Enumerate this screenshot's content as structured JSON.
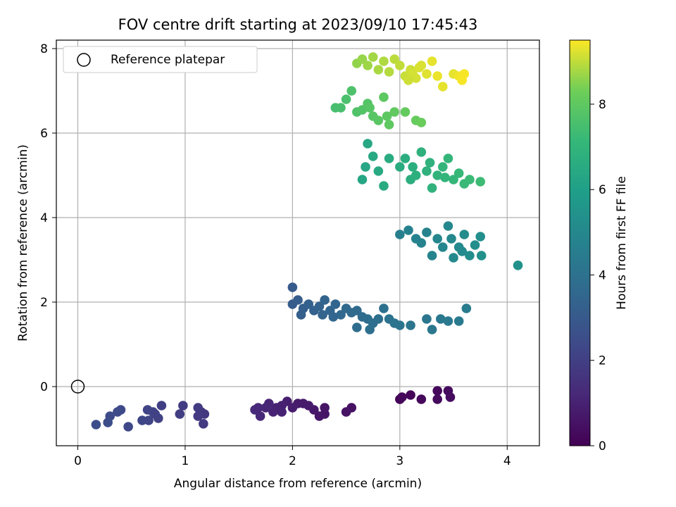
{
  "chart_data": {
    "type": "scatter",
    "title": "FOV centre drift starting at 2023/09/10 17:45:43",
    "xlabel": "Angular distance from reference (arcmin)",
    "ylabel": "Rotation from reference (arcmin)",
    "xlim": [
      -0.2,
      4.3
    ],
    "ylim": [
      -1.4,
      8.2
    ],
    "xticks": [
      0,
      1,
      2,
      3,
      4
    ],
    "yticks": [
      0,
      2,
      4,
      6,
      8
    ],
    "grid": true,
    "legend": {
      "position": "top-left",
      "entries": [
        "Reference platepar"
      ]
    },
    "reference_point": {
      "x": 0,
      "y": 0
    },
    "colorbar": {
      "label": "Hours from first FF file",
      "colormap": "viridis",
      "range": [
        0,
        9.5
      ],
      "ticks": [
        0,
        2,
        4,
        6,
        8
      ]
    },
    "points": [
      [
        3.0,
        -0.3,
        0.1
      ],
      [
        3.1,
        -0.2,
        0.15
      ],
      [
        3.2,
        -0.3,
        0.2
      ],
      [
        3.35,
        -0.1,
        0.25
      ],
      [
        3.45,
        -0.1,
        0.3
      ],
      [
        3.47,
        -0.25,
        0.35
      ],
      [
        3.35,
        -0.3,
        0.3
      ],
      [
        3.02,
        -0.25,
        0.2
      ],
      [
        2.55,
        -0.5,
        0.5
      ],
      [
        2.5,
        -0.6,
        0.55
      ],
      [
        2.3,
        -0.65,
        0.6
      ],
      [
        2.25,
        -0.7,
        0.65
      ],
      [
        2.2,
        -0.55,
        0.7
      ],
      [
        2.1,
        -0.4,
        0.75
      ],
      [
        2.05,
        -0.4,
        0.8
      ],
      [
        2.0,
        -0.5,
        0.85
      ],
      [
        1.95,
        -0.35,
        0.9
      ],
      [
        1.9,
        -0.45,
        0.95
      ],
      [
        1.85,
        -0.5,
        1.0
      ],
      [
        1.82,
        -0.6,
        1.05
      ],
      [
        1.78,
        -0.4,
        1.1
      ],
      [
        1.75,
        -0.5,
        1.15
      ],
      [
        1.7,
        -0.7,
        1.2
      ],
      [
        1.65,
        -0.55,
        1.25
      ],
      [
        2.15,
        -0.45,
        0.8
      ],
      [
        1.9,
        -0.6,
        1.0
      ],
      [
        2.3,
        -0.5,
        0.6
      ],
      [
        1.68,
        -0.5,
        1.2
      ],
      [
        1.18,
        -0.65,
        1.7
      ],
      [
        1.15,
        -0.6,
        1.75
      ],
      [
        1.17,
        -0.88,
        1.8
      ],
      [
        1.12,
        -0.5,
        1.85
      ],
      [
        0.98,
        -0.45,
        1.9
      ],
      [
        0.95,
        -0.65,
        1.95
      ],
      [
        0.78,
        -0.45,
        2.0
      ],
      [
        0.75,
        -0.75,
        2.05
      ],
      [
        0.7,
        -0.6,
        2.1
      ],
      [
        0.65,
        -0.55,
        2.15
      ],
      [
        0.66,
        -0.8,
        2.2
      ],
      [
        0.6,
        -0.8,
        2.25
      ],
      [
        0.47,
        -0.95,
        2.3
      ],
      [
        0.4,
        -0.55,
        2.35
      ],
      [
        0.37,
        -0.6,
        2.4
      ],
      [
        0.3,
        -0.7,
        2.45
      ],
      [
        0.28,
        -0.85,
        2.5
      ],
      [
        0.17,
        -0.9,
        2.55
      ],
      [
        1.12,
        -0.7,
        1.8
      ],
      [
        0.72,
        -0.65,
        2.1
      ],
      [
        2.0,
        2.35,
        3.0
      ],
      [
        2.0,
        1.95,
        3.1
      ],
      [
        2.05,
        2.05,
        3.15
      ],
      [
        2.1,
        1.85,
        3.2
      ],
      [
        2.15,
        1.95,
        3.25
      ],
      [
        2.2,
        1.8,
        3.3
      ],
      [
        2.25,
        1.9,
        3.35
      ],
      [
        2.3,
        2.05,
        3.4
      ],
      [
        2.35,
        1.8,
        3.45
      ],
      [
        2.4,
        1.95,
        3.5
      ],
      [
        2.45,
        1.7,
        3.55
      ],
      [
        2.5,
        1.85,
        3.6
      ],
      [
        2.55,
        1.75,
        3.65
      ],
      [
        2.6,
        1.8,
        3.7
      ],
      [
        2.65,
        1.65,
        3.75
      ],
      [
        2.7,
        1.6,
        3.8
      ],
      [
        2.75,
        1.5,
        3.85
      ],
      [
        2.8,
        1.6,
        3.9
      ],
      [
        2.85,
        1.85,
        3.95
      ],
      [
        2.9,
        1.6,
        4.0
      ],
      [
        2.95,
        1.5,
        4.05
      ],
      [
        3.0,
        1.45,
        4.1
      ],
      [
        3.1,
        1.45,
        4.15
      ],
      [
        3.25,
        1.6,
        4.2
      ],
      [
        3.3,
        1.35,
        4.25
      ],
      [
        3.38,
        1.6,
        4.3
      ],
      [
        3.45,
        1.55,
        4.35
      ],
      [
        3.55,
        1.55,
        4.4
      ],
      [
        3.62,
        1.85,
        4.45
      ],
      [
        2.6,
        1.4,
        3.8
      ],
      [
        2.72,
        1.35,
        3.9
      ],
      [
        2.08,
        1.7,
        3.2
      ],
      [
        2.28,
        1.7,
        3.4
      ],
      [
        2.38,
        1.65,
        3.5
      ],
      [
        3.0,
        3.6,
        4.6
      ],
      [
        3.08,
        3.7,
        4.7
      ],
      [
        3.15,
        3.5,
        4.75
      ],
      [
        3.2,
        3.4,
        4.8
      ],
      [
        3.3,
        3.1,
        4.85
      ],
      [
        3.35,
        3.5,
        4.9
      ],
      [
        3.4,
        3.3,
        4.95
      ],
      [
        3.45,
        3.8,
        5.0
      ],
      [
        3.5,
        3.05,
        5.05
      ],
      [
        3.55,
        3.3,
        5.1
      ],
      [
        3.6,
        3.6,
        5.15
      ],
      [
        3.65,
        3.1,
        5.2
      ],
      [
        3.7,
        3.35,
        5.25
      ],
      [
        3.75,
        3.55,
        5.3
      ],
      [
        3.76,
        3.1,
        5.35
      ],
      [
        4.1,
        2.87,
        5.4
      ],
      [
        3.25,
        3.65,
        4.8
      ],
      [
        3.48,
        3.5,
        5.0
      ],
      [
        3.58,
        3.2,
        5.1
      ],
      [
        2.65,
        4.9,
        6.3
      ],
      [
        2.7,
        5.75,
        6.35
      ],
      [
        2.75,
        5.45,
        6.4
      ],
      [
        2.8,
        5.1,
        6.45
      ],
      [
        2.85,
        4.75,
        6.5
      ],
      [
        2.9,
        5.4,
        6.55
      ],
      [
        3.0,
        5.2,
        6.6
      ],
      [
        3.05,
        5.4,
        6.65
      ],
      [
        3.1,
        4.9,
        6.7
      ],
      [
        3.15,
        5.0,
        6.75
      ],
      [
        3.2,
        5.55,
        6.8
      ],
      [
        3.25,
        5.1,
        6.85
      ],
      [
        3.3,
        4.7,
        6.9
      ],
      [
        3.35,
        5.0,
        6.95
      ],
      [
        3.4,
        5.2,
        7.0
      ],
      [
        3.45,
        5.4,
        7.05
      ],
      [
        3.5,
        4.9,
        7.1
      ],
      [
        3.55,
        5.05,
        7.15
      ],
      [
        3.6,
        4.8,
        7.2
      ],
      [
        3.65,
        4.9,
        7.25
      ],
      [
        3.75,
        4.85,
        7.3
      ],
      [
        2.68,
        5.2,
        6.3
      ],
      [
        3.12,
        5.2,
        6.7
      ],
      [
        3.28,
        5.3,
        6.85
      ],
      [
        3.42,
        4.95,
        7.0
      ],
      [
        2.4,
        6.6,
        7.5
      ],
      [
        2.45,
        6.6,
        7.55
      ],
      [
        2.5,
        6.8,
        7.6
      ],
      [
        2.55,
        7.0,
        7.65
      ],
      [
        2.6,
        6.5,
        7.7
      ],
      [
        2.65,
        6.55,
        7.75
      ],
      [
        2.7,
        6.7,
        7.8
      ],
      [
        2.75,
        6.4,
        7.85
      ],
      [
        2.8,
        6.3,
        7.9
      ],
      [
        2.85,
        6.85,
        7.95
      ],
      [
        2.9,
        6.2,
        8.0
      ],
      [
        2.95,
        6.5,
        8.05
      ],
      [
        3.05,
        6.5,
        8.1
      ],
      [
        3.15,
        6.3,
        8.15
      ],
      [
        3.2,
        6.25,
        8.2
      ],
      [
        2.72,
        6.6,
        7.85
      ],
      [
        2.88,
        6.4,
        7.95
      ],
      [
        2.6,
        7.65,
        8.6
      ],
      [
        2.65,
        7.75,
        8.65
      ],
      [
        2.7,
        7.6,
        8.7
      ],
      [
        2.75,
        7.8,
        8.75
      ],
      [
        2.8,
        7.5,
        8.8
      ],
      [
        2.85,
        7.7,
        8.85
      ],
      [
        2.9,
        7.45,
        8.9
      ],
      [
        2.95,
        7.75,
        8.95
      ],
      [
        3.0,
        7.6,
        9.0
      ],
      [
        3.05,
        7.35,
        9.05
      ],
      [
        3.1,
        7.5,
        9.1
      ],
      [
        3.15,
        7.3,
        9.15
      ],
      [
        3.2,
        7.6,
        9.2
      ],
      [
        3.25,
        7.4,
        9.25
      ],
      [
        3.3,
        7.7,
        9.3
      ],
      [
        3.35,
        7.35,
        9.35
      ],
      [
        3.4,
        7.1,
        9.3
      ],
      [
        3.5,
        7.4,
        9.3
      ],
      [
        3.55,
        7.35,
        9.4
      ],
      [
        3.58,
        7.25,
        9.45
      ],
      [
        3.6,
        7.4,
        9.45
      ],
      [
        3.12,
        7.4,
        9.15
      ],
      [
        3.18,
        7.55,
        9.2
      ],
      [
        3.08,
        7.25,
        9.1
      ]
    ]
  }
}
